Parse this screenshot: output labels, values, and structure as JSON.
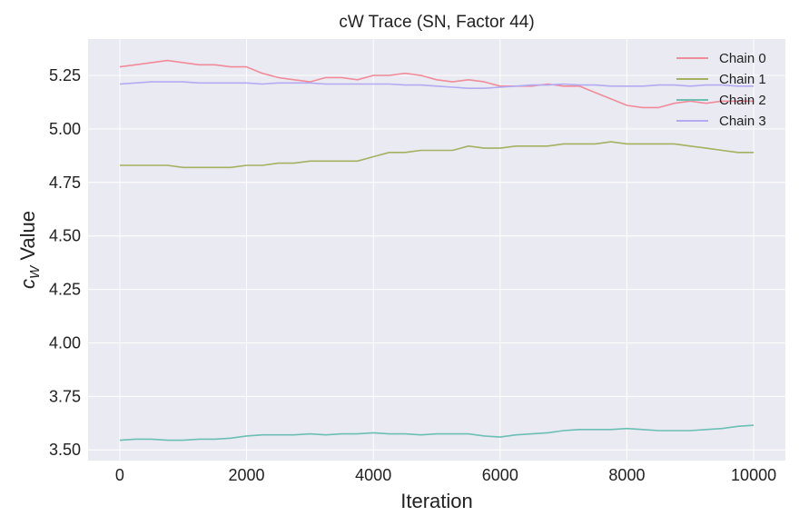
{
  "chart_data": {
    "type": "line",
    "title": "cW Trace (SN, Factor 44)",
    "xlabel": "Iteration",
    "ylabel_main": "c",
    "ylabel_sub": "W",
    "ylabel_rest": " Value",
    "xlim": [
      -500,
      10500
    ],
    "ylim": [
      3.45,
      5.42
    ],
    "xticks": [
      0,
      2000,
      4000,
      6000,
      8000,
      10000
    ],
    "xtick_labels": [
      "0",
      "2000",
      "4000",
      "6000",
      "8000",
      "10000"
    ],
    "yticks": [
      3.5,
      3.75,
      4.0,
      4.25,
      4.5,
      4.75,
      5.0,
      5.25
    ],
    "ytick_labels": [
      "3.50",
      "3.75",
      "4.00",
      "4.25",
      "4.50",
      "4.75",
      "5.00",
      "5.25"
    ],
    "grid": true,
    "legend_position": "top-right",
    "series": [
      {
        "name": "Chain 0",
        "color": "#f08c9a",
        "x": [
          0,
          250,
          500,
          750,
          1000,
          1250,
          1500,
          1750,
          2000,
          2250,
          2500,
          2750,
          3000,
          3250,
          3500,
          3750,
          4000,
          4250,
          4500,
          4750,
          5000,
          5250,
          5500,
          5750,
          6000,
          6250,
          6500,
          6750,
          7000,
          7250,
          7500,
          7750,
          8000,
          8250,
          8500,
          8750,
          9000,
          9250,
          9500,
          9750,
          10000
        ],
        "y": [
          5.29,
          5.3,
          5.31,
          5.32,
          5.31,
          5.3,
          5.3,
          5.29,
          5.29,
          5.26,
          5.24,
          5.23,
          5.22,
          5.24,
          5.24,
          5.23,
          5.25,
          5.25,
          5.26,
          5.25,
          5.23,
          5.22,
          5.23,
          5.22,
          5.2,
          5.2,
          5.2,
          5.21,
          5.2,
          5.2,
          5.17,
          5.14,
          5.11,
          5.1,
          5.1,
          5.12,
          5.13,
          5.12,
          5.13,
          5.13,
          5.13
        ]
      },
      {
        "name": "Chain 1",
        "color": "#a5b061",
        "x": [
          0,
          250,
          500,
          750,
          1000,
          1250,
          1500,
          1750,
          2000,
          2250,
          2500,
          2750,
          3000,
          3250,
          3500,
          3750,
          4000,
          4250,
          4500,
          4750,
          5000,
          5250,
          5500,
          5750,
          6000,
          6250,
          6500,
          6750,
          7000,
          7250,
          7500,
          7750,
          8000,
          8250,
          8500,
          8750,
          9000,
          9250,
          9500,
          9750,
          10000
        ],
        "y": [
          4.83,
          4.83,
          4.83,
          4.83,
          4.82,
          4.82,
          4.82,
          4.82,
          4.83,
          4.83,
          4.84,
          4.84,
          4.85,
          4.85,
          4.85,
          4.85,
          4.87,
          4.89,
          4.89,
          4.9,
          4.9,
          4.9,
          4.92,
          4.91,
          4.91,
          4.92,
          4.92,
          4.92,
          4.93,
          4.93,
          4.93,
          4.94,
          4.93,
          4.93,
          4.93,
          4.93,
          4.92,
          4.91,
          4.9,
          4.89,
          4.89
        ]
      },
      {
        "name": "Chain 2",
        "color": "#6cbfb3",
        "x": [
          0,
          250,
          500,
          750,
          1000,
          1250,
          1500,
          1750,
          2000,
          2250,
          2500,
          2750,
          3000,
          3250,
          3500,
          3750,
          4000,
          4250,
          4500,
          4750,
          5000,
          5250,
          5500,
          5750,
          6000,
          6250,
          6500,
          6750,
          7000,
          7250,
          7500,
          7750,
          8000,
          8250,
          8500,
          8750,
          9000,
          9250,
          9500,
          9750,
          10000
        ],
        "y": [
          3.545,
          3.55,
          3.55,
          3.545,
          3.545,
          3.55,
          3.55,
          3.555,
          3.565,
          3.57,
          3.57,
          3.57,
          3.575,
          3.57,
          3.575,
          3.575,
          3.58,
          3.575,
          3.575,
          3.57,
          3.575,
          3.575,
          3.575,
          3.565,
          3.56,
          3.57,
          3.575,
          3.58,
          3.59,
          3.595,
          3.595,
          3.595,
          3.6,
          3.595,
          3.59,
          3.59,
          3.59,
          3.595,
          3.6,
          3.61,
          3.615
        ]
      },
      {
        "name": "Chain 3",
        "color": "#b3aaf2",
        "x": [
          0,
          250,
          500,
          750,
          1000,
          1250,
          1500,
          1750,
          2000,
          2250,
          2500,
          2750,
          3000,
          3250,
          3500,
          3750,
          4000,
          4250,
          4500,
          4750,
          5000,
          5250,
          5500,
          5750,
          6000,
          6250,
          6500,
          6750,
          7000,
          7250,
          7500,
          7750,
          8000,
          8250,
          8500,
          8750,
          9000,
          9250,
          9500,
          9750,
          10000
        ],
        "y": [
          5.21,
          5.215,
          5.22,
          5.22,
          5.22,
          5.215,
          5.215,
          5.215,
          5.215,
          5.21,
          5.215,
          5.215,
          5.215,
          5.21,
          5.21,
          5.21,
          5.21,
          5.21,
          5.205,
          5.205,
          5.2,
          5.195,
          5.19,
          5.19,
          5.195,
          5.2,
          5.205,
          5.205,
          5.21,
          5.205,
          5.205,
          5.2,
          5.2,
          5.2,
          5.205,
          5.205,
          5.2,
          5.205,
          5.205,
          5.2,
          5.2
        ]
      }
    ]
  }
}
